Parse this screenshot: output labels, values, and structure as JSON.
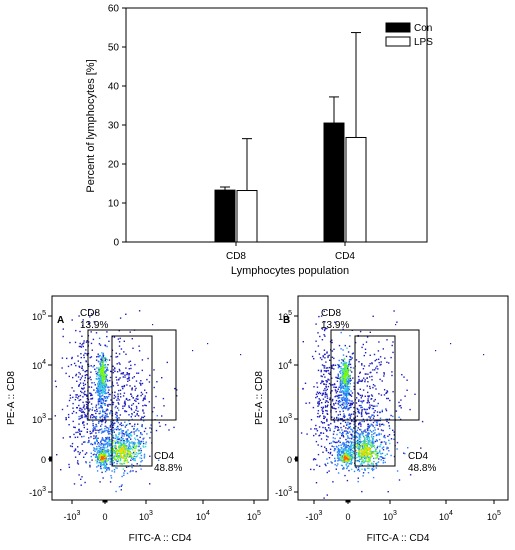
{
  "chart_data": [
    {
      "type": "bar",
      "title": "",
      "xlabel": "Lymphocytes population",
      "ylabel": "Percent of lymphocytes [%]",
      "categories": [
        "CD8",
        "CD4"
      ],
      "series": [
        {
          "name": "Con",
          "color": "#000000",
          "values": [
            13.3,
            30.5
          ],
          "errors": [
            0.8,
            6.7
          ]
        },
        {
          "name": "LPS",
          "color": "#ffffff",
          "values": [
            13.2,
            26.8
          ],
          "errors": [
            13.3,
            26.9
          ]
        }
      ],
      "ylim": [
        0,
        60
      ],
      "yticks": [
        "0",
        "10",
        "20",
        "30",
        "40",
        "50",
        "60"
      ],
      "legend_position": "top-right",
      "grid": false
    },
    {
      "type": "scatter",
      "panel_label": "A",
      "xlabel": "FITC-A :: CD4",
      "ylabel": "PE-A :: CD8",
      "xticks": [
        {
          "base": "-10",
          "exp": "3"
        },
        {
          "base": "0",
          "exp": ""
        },
        {
          "base": "10",
          "exp": "3"
        },
        {
          "base": "10",
          "exp": "4"
        },
        {
          "base": "10",
          "exp": "5"
        }
      ],
      "yticks": [
        {
          "base": "10",
          "exp": "5"
        },
        {
          "base": "10",
          "exp": "4"
        },
        {
          "base": "10",
          "exp": "3"
        },
        {
          "base": "0",
          "exp": ""
        },
        {
          "base": "-10",
          "exp": "3"
        }
      ],
      "gates": [
        {
          "name": "CD8",
          "percent": "13.9%"
        },
        {
          "name": "CD4",
          "percent": "48.8%"
        }
      ],
      "density_colors": [
        "#1f1fbf",
        "#2a7fff",
        "#33d6d6",
        "#7cfc00",
        "#ffd700",
        "#ff5a00"
      ]
    },
    {
      "type": "scatter",
      "panel_label": "B",
      "xlabel": "FITC-A :: CD4",
      "ylabel": "PE-A :: CD8",
      "xticks": [
        {
          "base": "-10",
          "exp": "3"
        },
        {
          "base": "0",
          "exp": ""
        },
        {
          "base": "10",
          "exp": "3"
        },
        {
          "base": "10",
          "exp": "4"
        },
        {
          "base": "10",
          "exp": "5"
        }
      ],
      "yticks": [
        {
          "base": "10",
          "exp": "5"
        },
        {
          "base": "10",
          "exp": "4"
        },
        {
          "base": "10",
          "exp": "3"
        },
        {
          "base": "0",
          "exp": ""
        },
        {
          "base": "-10",
          "exp": "3"
        }
      ],
      "gates": [
        {
          "name": "CD8",
          "percent": "13.9%"
        },
        {
          "name": "CD4",
          "percent": "48.8%"
        }
      ],
      "density_colors": [
        "#1f1fbf",
        "#2a7fff",
        "#33d6d6",
        "#7cfc00",
        "#ffd700",
        "#ff5a00"
      ]
    }
  ]
}
